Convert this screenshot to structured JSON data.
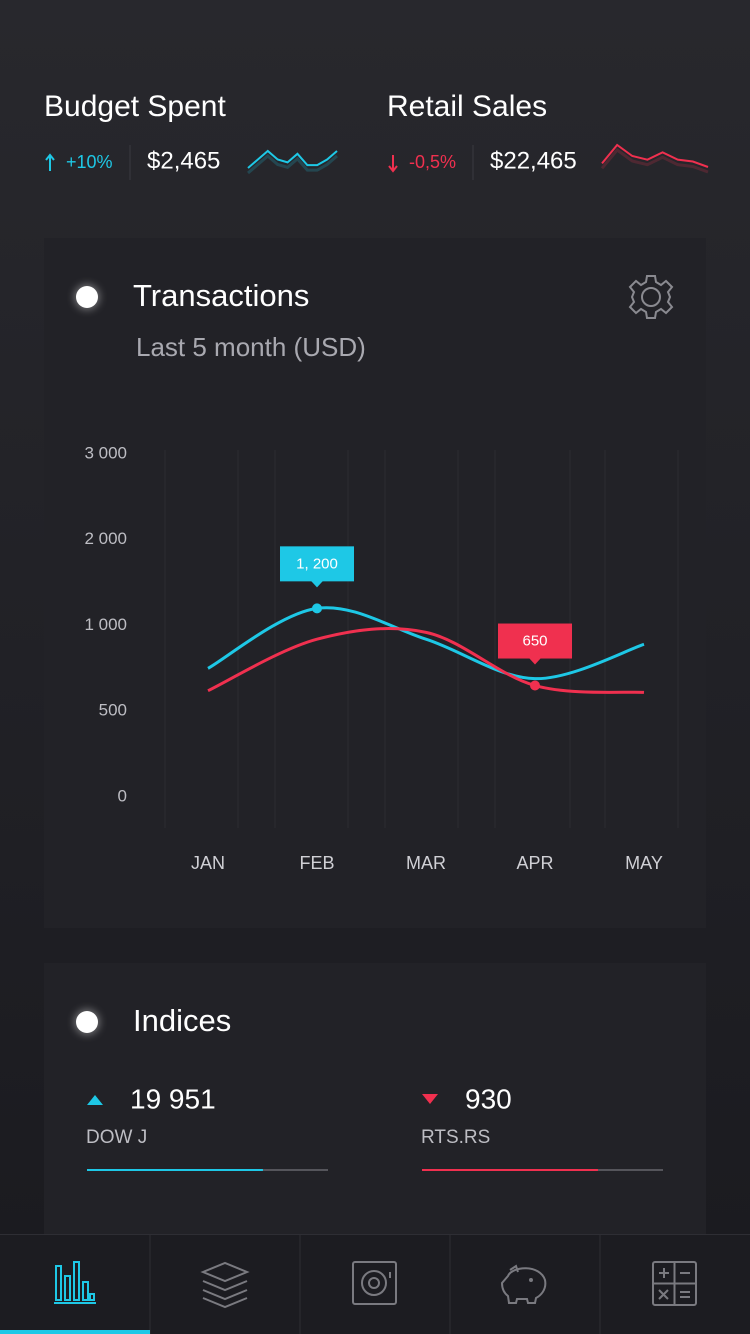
{
  "header": {
    "stats": [
      {
        "title": "Budget Spent",
        "change": "+10%",
        "value": "$2,465",
        "direction": "up",
        "color": "#1ec8e6",
        "sparkline": [
          3,
          6,
          9,
          6,
          5,
          8,
          4,
          4,
          6,
          9
        ]
      },
      {
        "title": "Retail Sales",
        "change": "-0,5%",
        "value": "$22,465",
        "direction": "down",
        "color": "#f0304f",
        "sparkline": [
          4,
          9,
          6,
          5,
          7,
          5,
          4.5,
          3
        ]
      }
    ]
  },
  "transactions": {
    "title": "Transactions",
    "subtitle": "Last 5 month (USD)",
    "chart_data": {
      "type": "line",
      "categories": [
        "JAN",
        "FEB",
        "MAR",
        "APR",
        "MAY"
      ],
      "series": [
        {
          "color": "#1ec8e6",
          "values": [
            750,
            1200,
            920,
            690,
            890
          ],
          "value_labels": [
            null,
            "1, 200",
            null,
            null,
            null
          ]
        },
        {
          "color": "#f0304f",
          "values": [
            620,
            920,
            960,
            650,
            610
          ],
          "value_labels": [
            null,
            null,
            null,
            "650",
            null
          ]
        }
      ],
      "ylim": [
        0,
        3000
      ],
      "yticks": [
        0,
        500,
        {
          "value": 1000,
          "label": "1 000"
        },
        {
          "value": 2000,
          "label": "2 000"
        },
        {
          "value": 3000,
          "label": "3 000"
        }
      ]
    }
  },
  "indices": {
    "title": "Indices",
    "items": [
      {
        "value": "19 951",
        "name": "DOW J",
        "direction": "up",
        "color": "#1ec8e6",
        "progress": 73
      },
      {
        "value": "930",
        "name": "RTS.RS",
        "direction": "down",
        "color": "#f0304f",
        "progress": 73
      }
    ]
  }
}
